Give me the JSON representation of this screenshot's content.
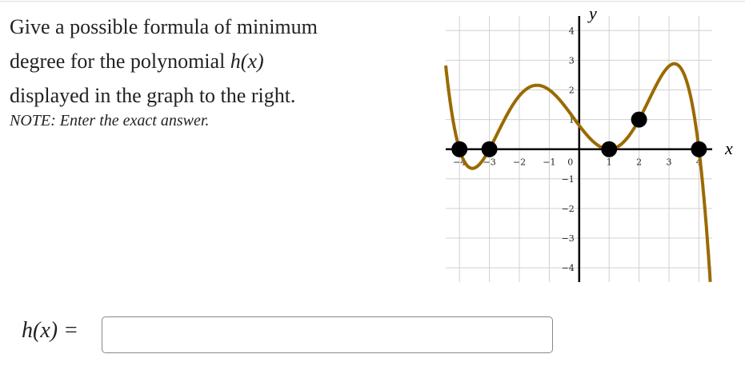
{
  "question": {
    "line1": "Give a possible formula of minimum",
    "line2_pre": "degree for the polynomial ",
    "line2_math": "h(x)",
    "line3": "displayed in the graph to the right.",
    "note": "NOTE: Enter the exact answer."
  },
  "answer": {
    "label": "h(x) =",
    "value": ""
  },
  "chart_data": {
    "type": "line",
    "xlabel": "x",
    "ylabel": "y",
    "xlim": [
      -4.5,
      4.5
    ],
    "ylim": [
      -4.5,
      4.5
    ],
    "grid": true,
    "x_ticks": [
      "-4",
      "-3",
      "-2",
      "-1",
      "0",
      "1",
      "2",
      "3",
      "4"
    ],
    "y_ticks": [
      "-4",
      "-3",
      "-2",
      "-1",
      "1",
      "2",
      "3",
      "4"
    ],
    "curve_color": "#9a6a00",
    "curve_formula_coefficients": {
      "leading": -0.016667,
      "roots": [
        -4,
        -3,
        1,
        1,
        4
      ]
    },
    "points": [
      {
        "x": -4,
        "y": 0
      },
      {
        "x": -3,
        "y": 0
      },
      {
        "x": 1,
        "y": 0
      },
      {
        "x": 2,
        "y": 1
      },
      {
        "x": 4,
        "y": 0
      }
    ]
  }
}
